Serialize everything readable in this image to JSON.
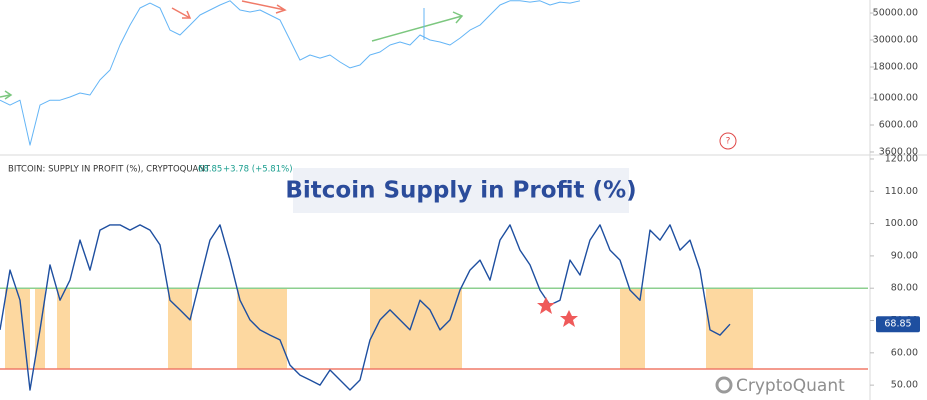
{
  "chart_data": [
    {
      "type": "line",
      "scale": "log",
      "color": "#64b5f6",
      "values": [
        9600,
        8750,
        9600,
        4100,
        8750,
        9600,
        9600,
        10200,
        11000,
        10600,
        14100,
        17000,
        27300,
        39800,
        55000,
        60400,
        55000,
        36200,
        33000,
        39800,
        48200,
        53000,
        58200,
        63000,
        53000,
        51000,
        53000,
        48200,
        43800,
        30000,
        20500,
        22600,
        21300,
        22600,
        19800,
        17700,
        18700,
        22600,
        23900,
        27300,
        28900,
        27300,
        33000,
        30000,
        28900,
        27300,
        31100,
        36200,
        39800,
        48200,
        58200,
        63000,
        63000,
        61500,
        63000,
        58200,
        61500,
        60400,
        63000
      ],
      "ylim": [
        3400,
        64000
      ],
      "yticks": [
        {
          "value": 3600,
          "label": "3600.00"
        },
        {
          "value": 6000,
          "label": "6000.00"
        },
        {
          "value": 10000,
          "label": "10000.00"
        },
        {
          "value": 18000,
          "label": "18000.00"
        },
        {
          "value": 30000,
          "label": "30000.00"
        },
        {
          "value": 50000,
          "label": "50000.00"
        }
      ]
    },
    {
      "type": "line",
      "title": "Bitcoin Supply in Profit (%)",
      "header": "BITCOIN: SUPPLY IN PROFIT (%), CRYPTOQUANT",
      "change": "+3.78 (+5.81%)",
      "watermark": "CryptoQuant",
      "series": [
        {
          "color": "#1e4fa0",
          "values": [
            67.1,
            85.6,
            76.3,
            48.5,
            67.1,
            87.2,
            76.3,
            82.5,
            94.9,
            85.6,
            98.0,
            99.6,
            99.6,
            98.0,
            99.6,
            98.0,
            93.4,
            76.3,
            73.3,
            70.2,
            82.5,
            94.9,
            99.6,
            88.7,
            76.3,
            70.2,
            67.1,
            65.5,
            64.0,
            56.2,
            53.1,
            51.6,
            50.0,
            54.7,
            51.6,
            48.5,
            51.6,
            64.0,
            70.2,
            73.3,
            70.2,
            67.1,
            76.3,
            73.3,
            67.1,
            70.2,
            79.4,
            85.6,
            88.7,
            82.5,
            94.9,
            99.6,
            91.8,
            87.2,
            79.4,
            74.8,
            76.3,
            88.7,
            84.1,
            94.9,
            99.6,
            91.8,
            88.7,
            79.4,
            76.3,
            98.0,
            94.9,
            99.6,
            91.8,
            94.9,
            85.6,
            67.1,
            65.5,
            68.85
          ]
        }
      ],
      "ylim": [
        45.4,
        120.3
      ],
      "yticks": [
        {
          "value": 50,
          "label": "50.00"
        },
        {
          "value": 60,
          "label": "60.00"
        },
        {
          "value": 70,
          "label": "70.00"
        },
        {
          "value": 80,
          "label": "80.00"
        },
        {
          "value": 90,
          "label": "90.00"
        },
        {
          "value": 100,
          "label": "100.00"
        },
        {
          "value": 110,
          "label": "110.00"
        },
        {
          "value": 120,
          "label": "120.00"
        }
      ],
      "hlines": [
        {
          "value": 80,
          "color": "#8ccf8f"
        },
        {
          "value": 55,
          "color": "#f07a68"
        }
      ],
      "band": {
        "range": [
          55,
          80
        ],
        "color": "#fdd8a0",
        "spans": [
          [
            0.5,
            3
          ],
          [
            3.5,
            4.5
          ],
          [
            5.7,
            7
          ],
          [
            16.8,
            19.2
          ],
          [
            23.7,
            28.7
          ],
          [
            37,
            46.2
          ],
          [
            62,
            64.5
          ],
          [
            70.6,
            75.3
          ]
        ]
      }
    }
  ]
}
